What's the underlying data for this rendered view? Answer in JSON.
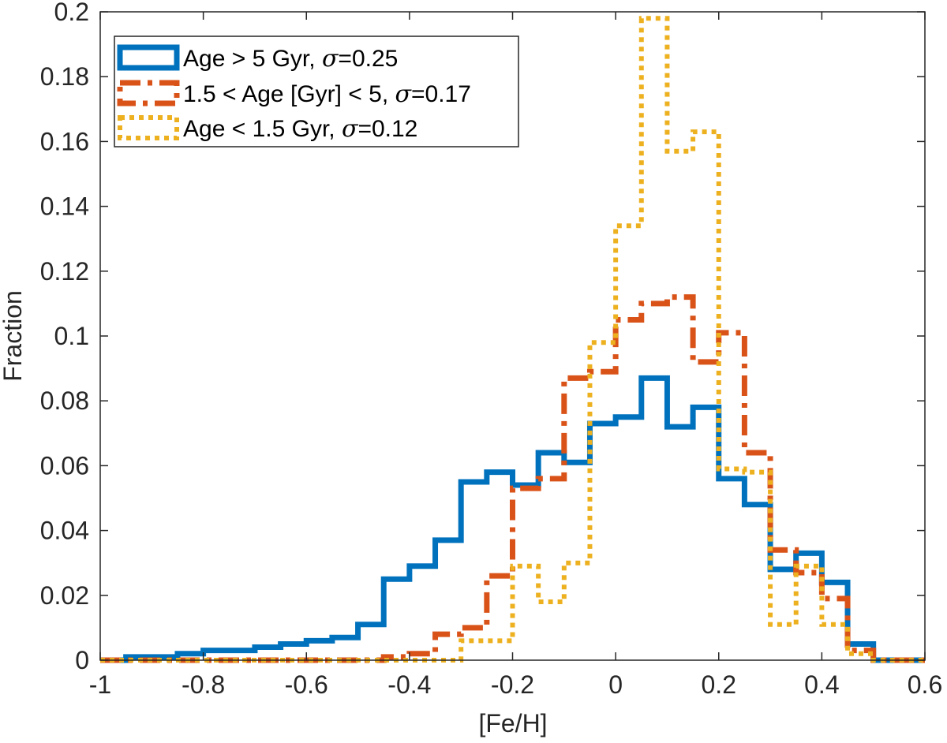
{
  "chart_data": {
    "type": "line",
    "style": "stairs-histogram",
    "title": "",
    "xlabel": "[Fe/H]",
    "ylabel": "Fraction",
    "xlim": [
      -1,
      0.6
    ],
    "ylim": [
      0,
      0.2
    ],
    "xticks": [
      -1,
      -0.8,
      -0.6,
      -0.4,
      -0.2,
      0,
      0.2,
      0.4,
      0.6
    ],
    "xtick_labels": [
      "-1",
      "-0.8",
      "-0.6",
      "-0.4",
      "-0.2",
      "0",
      "0.2",
      "0.4",
      "0.6"
    ],
    "yticks": [
      0,
      0.02,
      0.04,
      0.06,
      0.08,
      0.1,
      0.12,
      0.14,
      0.16,
      0.18,
      0.2
    ],
    "ytick_labels": [
      "0",
      "0.02",
      "0.04",
      "0.06",
      "0.08",
      "0.1",
      "0.12",
      "0.14",
      "0.16",
      "0.18",
      "0.2"
    ],
    "grid": false,
    "legend_position": "top-left",
    "bin_edges": [
      -1,
      -0.95,
      -0.9,
      -0.85,
      -0.8,
      -0.75,
      -0.7,
      -0.65,
      -0.6,
      -0.55,
      -0.5,
      -0.45,
      -0.4,
      -0.35,
      -0.3,
      -0.25,
      -0.2,
      -0.15,
      -0.1,
      -0.05,
      0,
      0.05,
      0.1,
      0.15,
      0.2,
      0.25,
      0.3,
      0.35,
      0.4,
      0.45,
      0.5,
      0.55,
      0.6
    ],
    "series": [
      {
        "name": "Age > 5 Gyr",
        "legend_prefix": "Age > 5 Gyr, ",
        "legend_sigma": "σ",
        "legend_suffix": "=0.25",
        "color": "#0072BD",
        "line_style": "solid",
        "values": [
          0,
          0.001,
          0.001,
          0.002,
          0.003,
          0.003,
          0.004,
          0.005,
          0.006,
          0.007,
          0.011,
          0.025,
          0.029,
          0.037,
          0.055,
          0.058,
          0.054,
          0.064,
          0.061,
          0.073,
          0.075,
          0.087,
          0.072,
          0.078,
          0.056,
          0.048,
          0.028,
          0.033,
          0.024,
          0.005,
          0,
          0
        ]
      },
      {
        "name": "1.5 < Age [Gyr] < 5",
        "legend_prefix": "1.5 < Age [Gyr] < 5, ",
        "legend_sigma": "σ",
        "legend_suffix": "=0.17",
        "color": "#D95319",
        "line_style": "dashdot",
        "values": [
          0,
          0,
          0,
          0,
          0,
          0,
          0,
          0,
          0,
          0,
          0,
          0.001,
          0.002,
          0.008,
          0.01,
          0.026,
          0.053,
          0.056,
          0.087,
          0.089,
          0.105,
          0.11,
          0.112,
          0.092,
          0.101,
          0.064,
          0.034,
          0.027,
          0.019,
          0.003,
          0,
          0
        ]
      },
      {
        "name": "Age < 1.5 Gyr",
        "legend_prefix": "Age < 1.5 Gyr,  ",
        "legend_sigma": "σ",
        "legend_suffix": "=0.12",
        "color": "#EDB120",
        "line_style": "dotted",
        "values": [
          0,
          0,
          0,
          0,
          0,
          0,
          0,
          0,
          0,
          0,
          0,
          0,
          0,
          0,
          0.006,
          0.006,
          0.029,
          0.018,
          0.03,
          0.098,
          0.134,
          0.198,
          0.157,
          0.163,
          0.059,
          0.058,
          0.011,
          0.029,
          0.011,
          0.002,
          0,
          0
        ]
      }
    ]
  }
}
